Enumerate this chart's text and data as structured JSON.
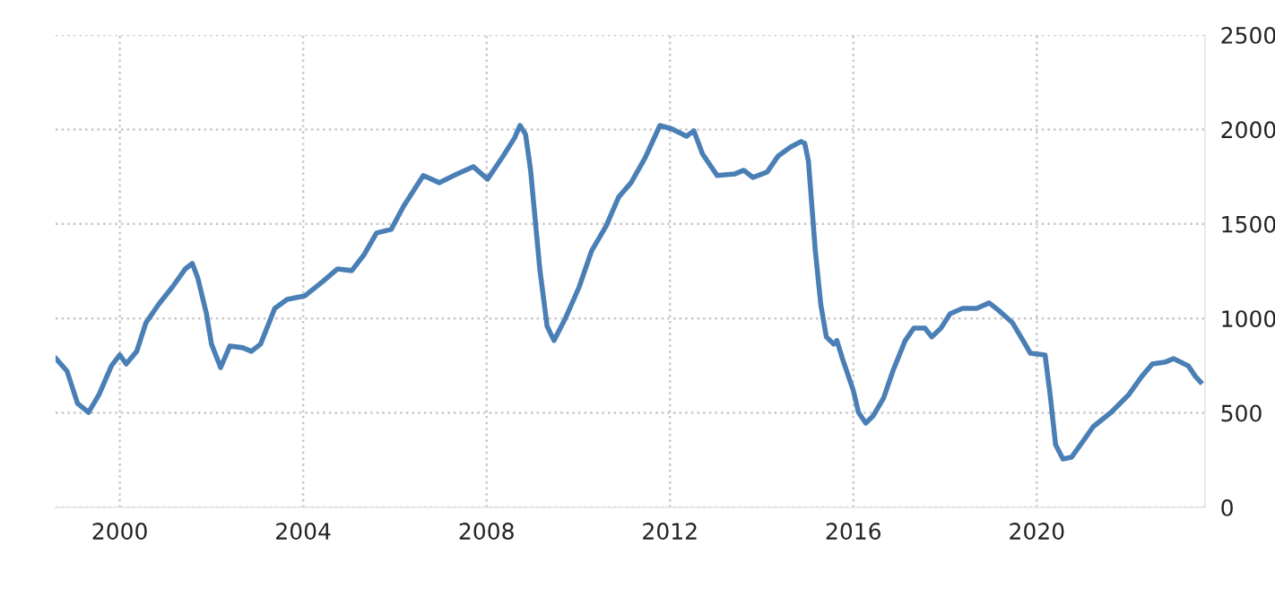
{
  "chart_data": {
    "type": "line",
    "x": [
      1998.61,
      1998.85,
      1999.08,
      1999.32,
      1999.55,
      1999.82,
      2000.0,
      2000.14,
      2000.37,
      2000.57,
      2000.84,
      2001.15,
      2001.43,
      2001.58,
      2001.7,
      2001.89,
      2002.0,
      2002.2,
      2002.4,
      2002.68,
      2002.87,
      2003.07,
      2003.38,
      2003.65,
      2004.04,
      2004.43,
      2004.75,
      2005.06,
      2005.33,
      2005.6,
      2005.92,
      2006.19,
      2006.62,
      2006.97,
      2007.36,
      2007.71,
      2008.02,
      2008.34,
      2008.61,
      2008.73,
      2008.85,
      2008.96,
      2009.16,
      2009.32,
      2009.47,
      2009.71,
      2010.02,
      2010.29,
      2010.61,
      2010.88,
      2011.15,
      2011.46,
      2011.78,
      2012.05,
      2012.36,
      2012.52,
      2012.71,
      2013.03,
      2013.42,
      2013.61,
      2013.81,
      2014.12,
      2014.36,
      2014.63,
      2014.86,
      2014.94,
      2015.02,
      2015.17,
      2015.29,
      2015.41,
      2015.57,
      2015.64,
      2015.76,
      2016.0,
      2016.11,
      2016.27,
      2016.43,
      2016.66,
      2016.86,
      2017.13,
      2017.32,
      2017.56,
      2017.71,
      2017.91,
      2018.11,
      2018.38,
      2018.69,
      2018.96,
      2019.16,
      2019.47,
      2019.7,
      2019.86,
      2020.18,
      2020.29,
      2020.41,
      2020.57,
      2020.76,
      2021.04,
      2021.23,
      2021.62,
      2022.01,
      2022.29,
      2022.52,
      2022.79,
      2022.98,
      2023.3,
      2023.46,
      2023.57
    ],
    "series": [
      {
        "color": "#4a7fb5",
        "values": [
          787,
          721,
          550,
          503,
          598,
          750,
          807,
          759,
          826,
          977,
          1072,
          1167,
          1262,
          1291,
          1215,
          1025,
          864,
          740,
          854,
          845,
          826,
          864,
          1053,
          1101,
          1120,
          1196,
          1262,
          1253,
          1338,
          1452,
          1471,
          1594,
          1756,
          1718,
          1765,
          1803,
          1737,
          1851,
          1955,
          2021,
          1974,
          1784,
          1262,
          959,
          883,
          996,
          1167,
          1357,
          1490,
          1642,
          1718,
          1851,
          2021,
          2002,
          1964,
          1993,
          1870,
          1756,
          1765,
          1784,
          1746,
          1775,
          1860,
          1907,
          1936,
          1926,
          1831,
          1357,
          1072,
          902,
          864,
          883,
          788,
          617,
          503,
          446,
          484,
          579,
          721,
          883,
          949,
          949,
          902,
          949,
          1025,
          1053,
          1053,
          1082,
          1044,
          977,
          883,
          816,
          807,
          598,
          332,
          256,
          266,
          361,
          427,
          503,
          598,
          693,
          759,
          768,
          787,
          750,
          693,
          664
        ]
      }
    ],
    "xlim": [
      1998.6,
      2023.67
    ],
    "xticks": [
      2000,
      2004,
      2008,
      2012,
      2016,
      2020
    ],
    "ylim": [
      0,
      2500
    ],
    "yticks": [
      0,
      500,
      1000,
      1500,
      2000,
      2500
    ],
    "grid": true,
    "line_style": "solid",
    "marker": "none"
  }
}
